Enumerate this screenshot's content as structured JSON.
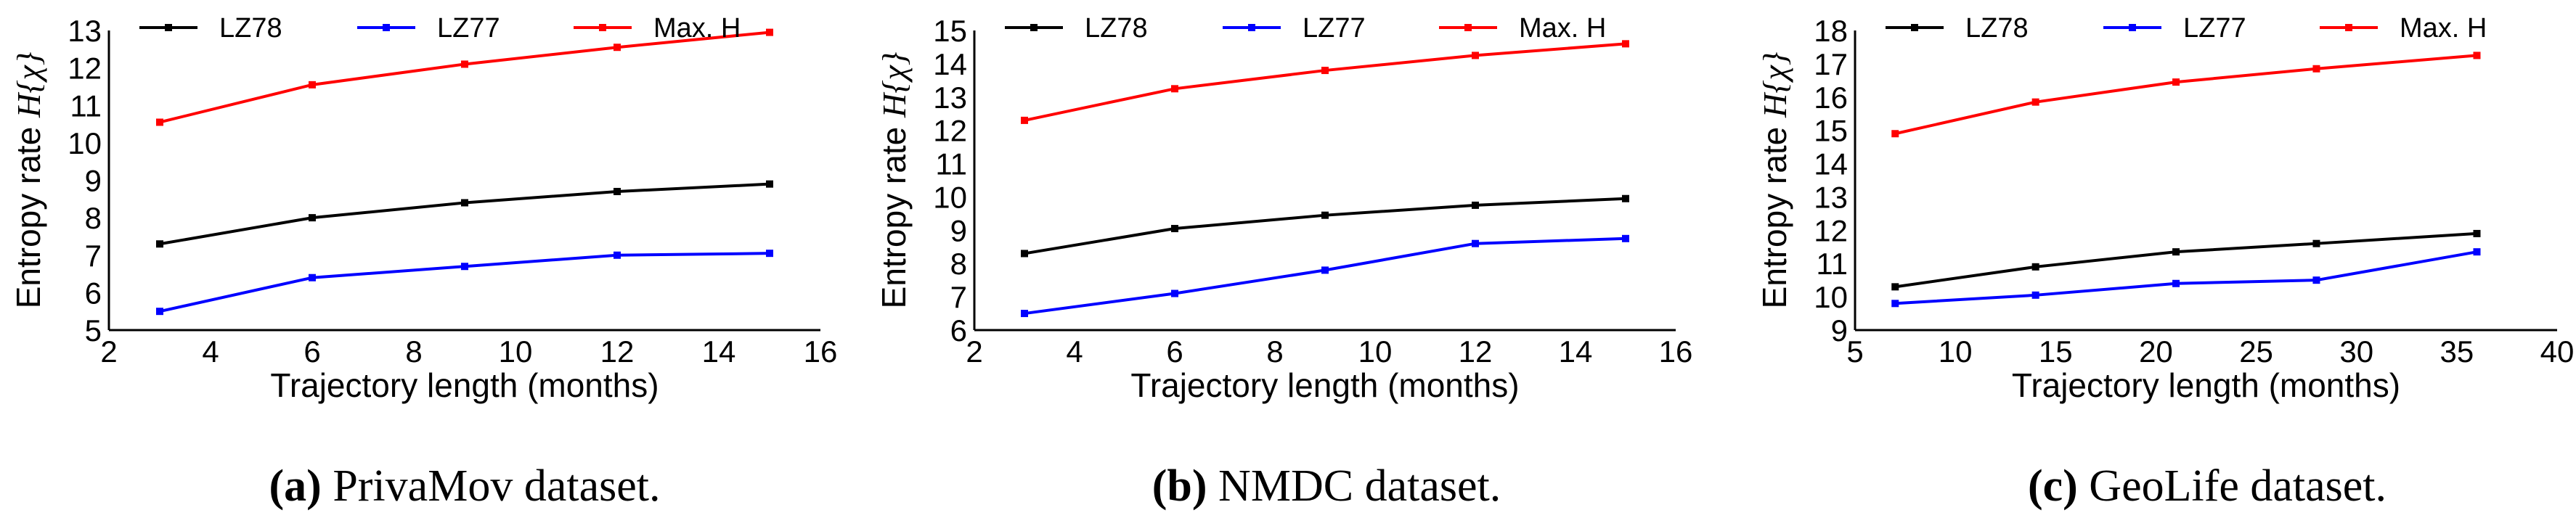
{
  "chart_data": [
    {
      "type": "line",
      "caption_letter": "(a)",
      "caption_text": " PrivaMov dataset.",
      "xlabel": "Trajectory length (months)",
      "ylabel": "Entropy rate H{χ}",
      "ylabel_prefix": "Entropy rate ",
      "ylabel_math": "H{χ}",
      "xlim": [
        2,
        16
      ],
      "ylim": [
        5,
        13
      ],
      "xticks": [
        "2",
        "4",
        "6",
        "8",
        "10",
        "12",
        "14",
        "16"
      ],
      "yticks": [
        "5",
        "6",
        "7",
        "8",
        "9",
        "10",
        "11",
        "12",
        "13"
      ],
      "x": [
        3,
        6,
        9,
        12,
        15
      ],
      "series": [
        {
          "name": "LZ78",
          "color": "#000000",
          "values": [
            7.3,
            8.0,
            8.4,
            8.7,
            8.9
          ]
        },
        {
          "name": "LZ77",
          "color": "#0000ff",
          "values": [
            5.5,
            6.4,
            6.7,
            7.0,
            7.05
          ]
        },
        {
          "name": "Max. H",
          "color": "#ff0000",
          "values": [
            10.55,
            11.55,
            12.1,
            12.55,
            12.95
          ]
        }
      ]
    },
    {
      "type": "line",
      "caption_letter": "(b)",
      "caption_text": " NMDC dataset.",
      "xlabel": "Trajectory length (months)",
      "ylabel": "Entropy rate H{χ}",
      "ylabel_prefix": "Entropy rate ",
      "ylabel_math": "H{χ}",
      "xlim": [
        2,
        16
      ],
      "ylim": [
        6,
        15
      ],
      "xticks": [
        "2",
        "4",
        "6",
        "8",
        "10",
        "12",
        "14",
        "16"
      ],
      "yticks": [
        "6",
        "7",
        "8",
        "9",
        "10",
        "11",
        "12",
        "13",
        "14",
        "15"
      ],
      "x": [
        3,
        6,
        9,
        12,
        15
      ],
      "series": [
        {
          "name": "LZ78",
          "color": "#000000",
          "values": [
            8.3,
            9.05,
            9.45,
            9.75,
            9.95
          ]
        },
        {
          "name": "LZ77",
          "color": "#0000ff",
          "values": [
            6.5,
            7.1,
            7.8,
            8.6,
            8.75
          ]
        },
        {
          "name": "Max. H",
          "color": "#ff0000",
          "values": [
            12.3,
            13.25,
            13.8,
            14.25,
            14.6
          ]
        }
      ]
    },
    {
      "type": "line",
      "caption_letter": "(c)",
      "caption_text": " GeoLife dataset.",
      "xlabel": "Trajectory length (months)",
      "ylabel": "Entropy rate H{χ}",
      "ylabel_prefix": "Entropy rate ",
      "ylabel_math": "H{χ}",
      "xlim": [
        5,
        40
      ],
      "ylim": [
        9,
        18
      ],
      "xticks": [
        "5",
        "10",
        "15",
        "20",
        "25",
        "30",
        "35",
        "40"
      ],
      "yticks": [
        "9",
        "10",
        "11",
        "12",
        "13",
        "14",
        "15",
        "16",
        "17",
        "18"
      ],
      "x": [
        7,
        14,
        21,
        28,
        36
      ],
      "series": [
        {
          "name": "LZ78",
          "color": "#000000",
          "values": [
            10.3,
            10.9,
            11.35,
            11.6,
            11.9
          ]
        },
        {
          "name": "LZ77",
          "color": "#0000ff",
          "values": [
            9.8,
            10.05,
            10.4,
            10.5,
            11.35
          ]
        },
        {
          "name": "Max. H",
          "color": "#ff0000",
          "values": [
            14.9,
            15.85,
            16.45,
            16.85,
            17.25
          ]
        }
      ]
    }
  ]
}
